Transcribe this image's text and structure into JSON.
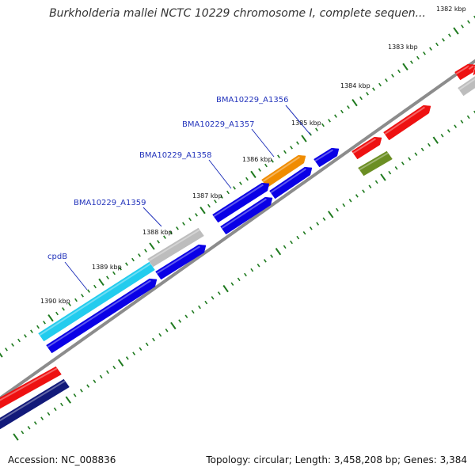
{
  "header": {
    "title": "Burkholderia mallei NCTC 10229 chromosome I, complete sequen..."
  },
  "footer": {
    "accession": "Accession: NC_008836",
    "summary": "Topology: circular; Length: 3,458,208 bp; Genes: 3,384"
  },
  "colors": {
    "backbone": "#8c8c8c",
    "tick": "#1f7a1f",
    "label": "#2233bb",
    "gene_blue": "#0a00e6",
    "gene_cyan": "#22ccee",
    "gene_gray": "#bdbdbd",
    "gene_orange": "#f08c00",
    "gene_red": "#ee1111",
    "gene_olive": "#6b8e23",
    "gene_navy": "#121a7a"
  },
  "ticks": [
    {
      "label": "1382 kbp"
    },
    {
      "label": "1383 kbp"
    },
    {
      "label": "1384 kbp"
    },
    {
      "label": "1385 kbp"
    },
    {
      "label": "1386 kbp"
    },
    {
      "label": "1387 kbp"
    },
    {
      "label": "1388 kbp"
    },
    {
      "label": "1389 kbp"
    },
    {
      "label": "1390 kbp"
    }
  ],
  "gene_labels": [
    {
      "label": "BMA10229_A1356"
    },
    {
      "label": "BMA10229_A1357"
    },
    {
      "label": "BMA10229_A1358"
    },
    {
      "label": "BMA10229_A1359"
    },
    {
      "label": "cpdB"
    }
  ],
  "features": [
    {
      "name": "feature-gray-top-right",
      "color": "gene_gray"
    },
    {
      "name": "feature-red-top-right-1",
      "color": "gene_red"
    },
    {
      "name": "feature-red-top-right-2",
      "color": "gene_red"
    },
    {
      "name": "feature-red-mid",
      "color": "gene_red"
    },
    {
      "name": "feature-red-small",
      "color": "gene_red"
    },
    {
      "name": "feature-olive",
      "color": "gene_olive"
    },
    {
      "name": "feature-blue-small",
      "color": "gene_blue"
    },
    {
      "name": "feature-orange-a1356",
      "color": "gene_orange"
    },
    {
      "name": "feature-blue-a1357",
      "color": "gene_blue"
    },
    {
      "name": "feature-blue-a1358",
      "color": "gene_blue"
    },
    {
      "name": "feature-blue-a1357-inner",
      "color": "gene_blue"
    },
    {
      "name": "feature-gray-a1359",
      "color": "gene_gray"
    },
    {
      "name": "feature-blue-a1359-inner",
      "color": "gene_blue"
    },
    {
      "name": "feature-cyan-cpdb",
      "color": "gene_cyan"
    },
    {
      "name": "feature-blue-long-inner",
      "color": "gene_blue"
    },
    {
      "name": "feature-red-bottom-left",
      "color": "gene_red"
    },
    {
      "name": "feature-navy-bottom-left",
      "color": "gene_navy"
    }
  ]
}
